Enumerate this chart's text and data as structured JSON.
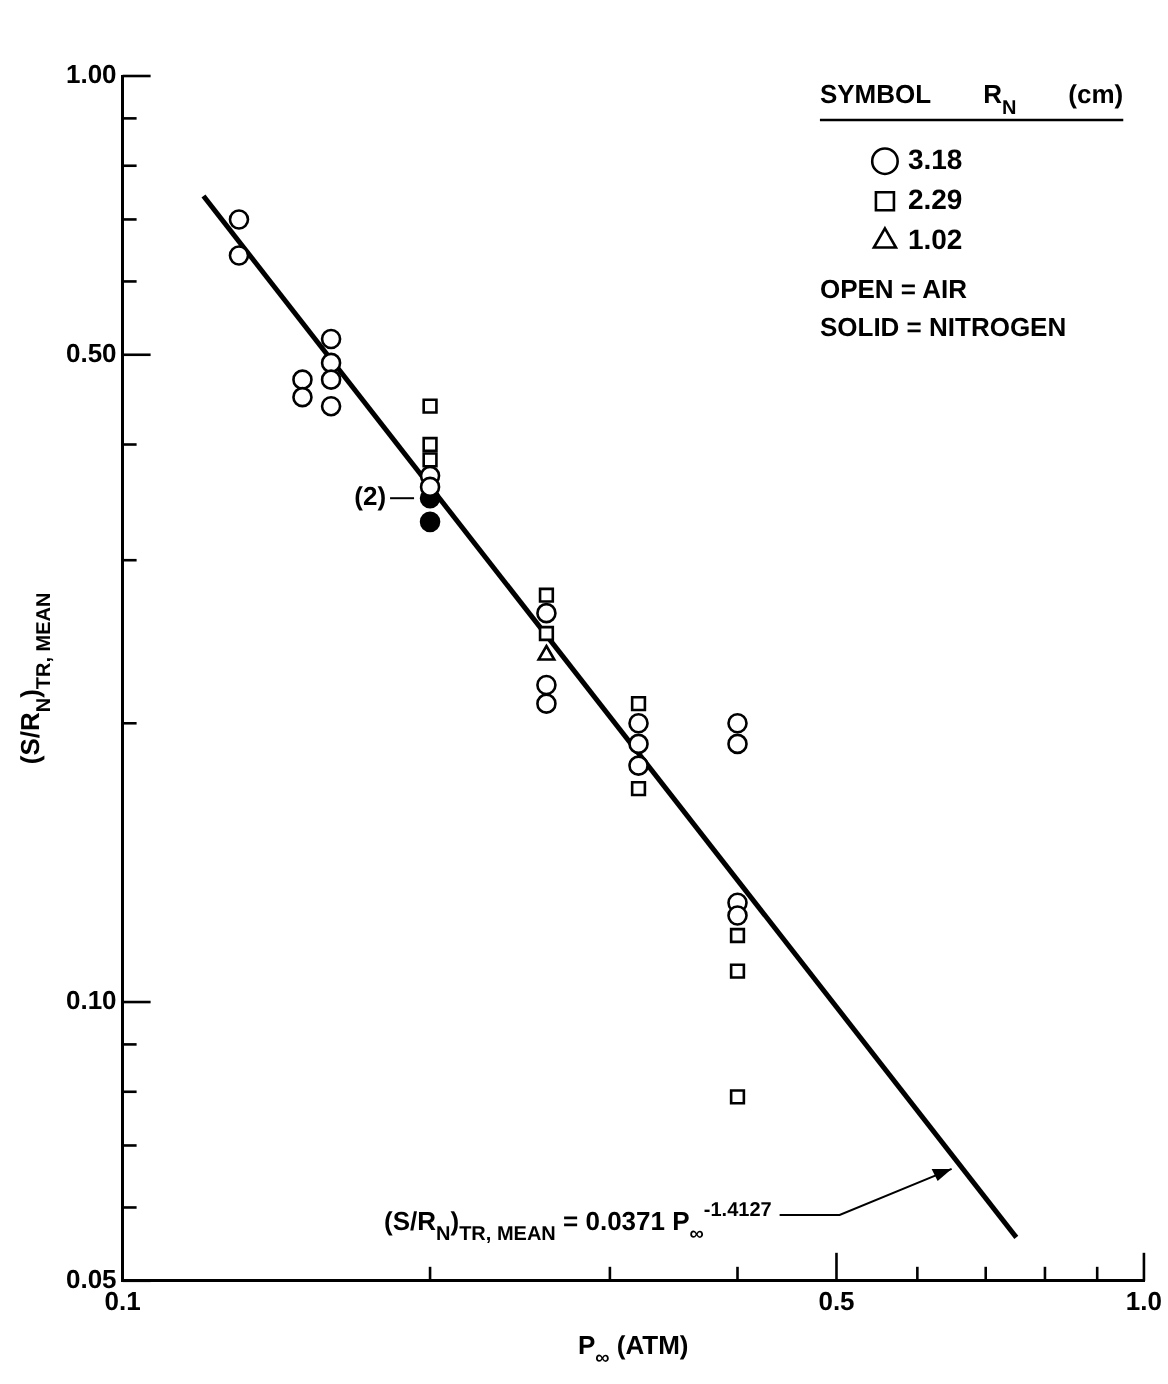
{
  "chart_data": {
    "type": "scatter",
    "xlabel": "P$_{∞}$ (ATM)",
    "ylabel": "(S/R$_{N}$)$_{TR, MEAN}$",
    "legend_title": "SYMBOL    R$_{N}$ (cm)",
    "legend": "top right",
    "log": "xy",
    "grid": false,
    "marker": "circle",
    "xlim": [
      0.1,
      1.0
    ],
    "ylim": [
      0.05,
      1.0
    ],
    "xticks": [
      {
        "value": 0.1,
        "label": "0.1"
      },
      {
        "value": 0.2,
        "label": null
      },
      {
        "value": 0.3,
        "label": null
      },
      {
        "value": 0.4,
        "label": null
      },
      {
        "value": 0.5,
        "label": "0.5"
      },
      {
        "value": 0.6,
        "label": null
      },
      {
        "value": 0.7,
        "label": null
      },
      {
        "value": 0.8,
        "label": null
      },
      {
        "value": 0.9,
        "label": null
      },
      {
        "value": 1.0,
        "label": "1.0"
      }
    ],
    "yticks": [
      {
        "value": 0.05,
        "label": "0.05"
      },
      {
        "value": 0.06,
        "label": null
      },
      {
        "value": 0.07,
        "label": null
      },
      {
        "value": 0.08,
        "label": null
      },
      {
        "value": 0.09,
        "label": null
      },
      {
        "value": 0.1,
        "label": "0.10"
      },
      {
        "value": 0.2,
        "label": null
      },
      {
        "value": 0.3,
        "label": null
      },
      {
        "value": 0.4,
        "label": null
      },
      {
        "value": 0.5,
        "label": "0.50"
      },
      {
        "value": 0.6,
        "label": null
      },
      {
        "value": 0.7,
        "label": null
      },
      {
        "value": 0.8,
        "label": null
      },
      {
        "value": 0.9,
        "label": null
      },
      {
        "value": 1.0,
        "label": "1.00"
      }
    ],
    "series": [
      {
        "name": "3.18",
        "color": "#000000",
        "x": [
          0.13,
          0.13,
          0.15,
          0.15,
          0.16,
          0.16,
          0.16,
          0.16,
          0.2,
          0.2,
          0.26,
          0.26,
          0.26,
          0.32,
          0.32,
          0.32,
          0.4,
          0.4,
          0.4,
          0.4
        ],
        "values": [
          0.7,
          0.64,
          0.47,
          0.45,
          0.52,
          0.49,
          0.47,
          0.44,
          0.37,
          0.36,
          0.263,
          0.22,
          0.21,
          0.2,
          0.19,
          0.18,
          0.2,
          0.19,
          0.128,
          0.124
        ]
      },
      {
        "name": "2.29",
        "color": "#000000",
        "marker": "square",
        "x": [
          0.2,
          0.2,
          0.2,
          0.26,
          0.26,
          0.32,
          0.32,
          0.4,
          0.4,
          0.4
        ],
        "values": [
          0.44,
          0.4,
          0.385,
          0.275,
          0.25,
          0.21,
          0.17,
          0.118,
          0.108,
          0.079
        ]
      },
      {
        "name": "1.02",
        "color": "#000000",
        "marker": "triangle",
        "x": [
          0.26
        ],
        "values": [
          0.237
        ]
      },
      {
        "color": "#000000",
        "x": [
          0.2,
          0.2
        ],
        "values": [
          0.35,
          0.33
        ]
      },
      {
        "type": "line",
        "color": "#000000",
        "marker": "none",
        "x": [
          0.12,
          0.75
        ],
        "values": [
          0.742,
          0.0557
        ]
      }
    ],
    "annotations": [
      "OPEN = AIR",
      "SOLID = NITROGEN",
      {
        "text": "(2)",
        "x": 0.2,
        "y": 0.35
      },
      {
        "text": "(S/R$_{N}$)$_{TR, MEAN}$ = 0.0371 P$_{∞}$$^{-1.4127}$",
        "x": 0.66,
        "y": 0.0667
      }
    ]
  }
}
